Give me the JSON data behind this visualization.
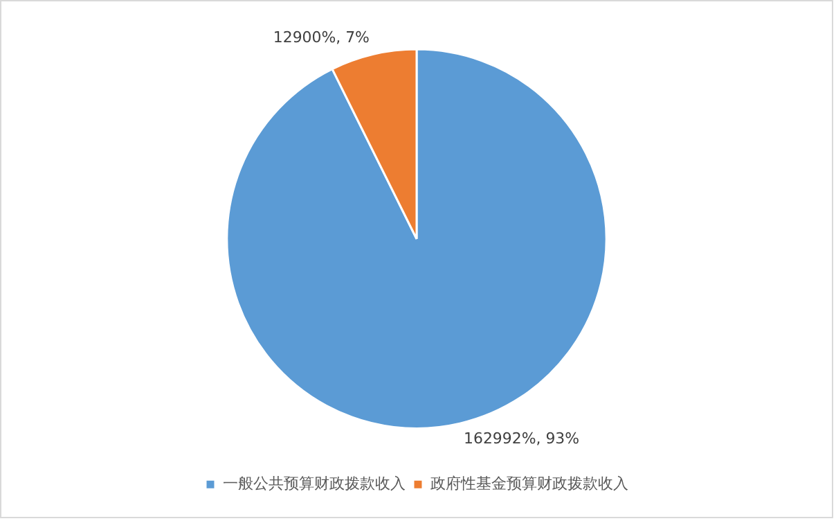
{
  "chart_data": {
    "type": "pie",
    "categories": [
      "一般公共预算财政拨款收入",
      "政府性基金预算财政拨款收入"
    ],
    "values": [
      162992,
      12900
    ],
    "colors": [
      "#5b9bd5",
      "#ed7d31"
    ],
    "value_labels": [
      "162992%, 93%",
      "12900%, 7%"
    ],
    "legend": "bottom"
  }
}
